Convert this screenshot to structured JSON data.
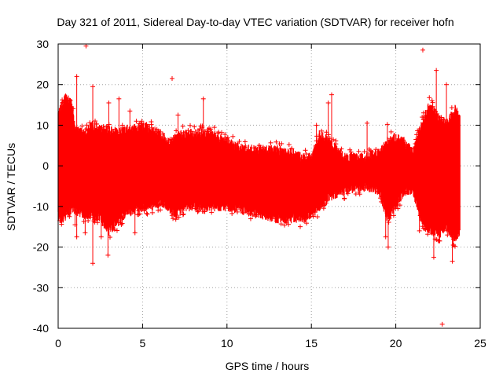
{
  "chart_data": {
    "type": "scatter",
    "title": "Day 321 of 2011, Sidereal Day-to-day VTEC variation (SDTVAR) for receiver hofn",
    "xlabel": "GPS time / hours",
    "ylabel": "SDTVAR / TECUs",
    "xlim": [
      0,
      25
    ],
    "ylim": [
      -40,
      30
    ],
    "xticks": [
      0,
      5,
      10,
      15,
      20,
      25
    ],
    "yticks": [
      -40,
      -30,
      -20,
      -10,
      0,
      10,
      20,
      30
    ],
    "grid": true,
    "marker": "+",
    "series_color": "#ff0000",
    "envelope": {
      "description": "dense band of points, approximate upper/lower bounds (x in hours, y in TECU)",
      "x": [
        0.0,
        0.2,
        0.5,
        0.8,
        1.0,
        1.5,
        2.0,
        2.5,
        3.0,
        3.5,
        4.0,
        4.5,
        5.0,
        5.5,
        6.0,
        6.5,
        7.0,
        7.5,
        8.0,
        9.0,
        10.0,
        11.0,
        12.0,
        13.0,
        14.0,
        14.5,
        15.0,
        15.5,
        16.0,
        16.5,
        17.0,
        18.0,
        19.0,
        19.5,
        20.0,
        20.5,
        21.0,
        21.5,
        22.0,
        22.5,
        23.0,
        23.5,
        23.8
      ],
      "upper": [
        12,
        15,
        17,
        15,
        9,
        8,
        10,
        9,
        9,
        8,
        9,
        9,
        10,
        9,
        8,
        6,
        7,
        8,
        8,
        8,
        6,
        4,
        4,
        4,
        3,
        2,
        2,
        8,
        6,
        4,
        2,
        2,
        3,
        6,
        7,
        6,
        3,
        10,
        15,
        12,
        10,
        14,
        12
      ],
      "lower": [
        -12,
        -14,
        -12,
        -11,
        -11,
        -12,
        -12,
        -13,
        -16,
        -14,
        -12,
        -11,
        -10,
        -10,
        -9,
        -10,
        -12,
        -10,
        -10,
        -10,
        -10,
        -11,
        -12,
        -13,
        -13,
        -13,
        -12,
        -10,
        -8,
        -7,
        -6,
        -5,
        -6,
        -13,
        -10,
        -6,
        -6,
        -13,
        -16,
        -17,
        -15,
        -18,
        -16
      ]
    },
    "outliers": [
      {
        "x": 1.65,
        "y": 29.5
      },
      {
        "x": 1.1,
        "y": 22
      },
      {
        "x": 2.05,
        "y": 19.5
      },
      {
        "x": 6.75,
        "y": 21.5
      },
      {
        "x": 7.1,
        "y": 12.5
      },
      {
        "x": 8.6,
        "y": 16.5
      },
      {
        "x": 16.2,
        "y": 17.5
      },
      {
        "x": 16.0,
        "y": 15.5
      },
      {
        "x": 18.3,
        "y": 10.5
      },
      {
        "x": 19.5,
        "y": 10.2
      },
      {
        "x": 15.3,
        "y": 10.0
      },
      {
        "x": 21.6,
        "y": 28.5
      },
      {
        "x": 22.4,
        "y": 23.5
      },
      {
        "x": 23.0,
        "y": 20
      },
      {
        "x": 3.0,
        "y": 15.5
      },
      {
        "x": 3.6,
        "y": 16.5
      },
      {
        "x": 4.25,
        "y": 13.5
      },
      {
        "x": 4.55,
        "y": -16.5
      },
      {
        "x": 1.6,
        "y": -16.5
      },
      {
        "x": 2.05,
        "y": -24
      },
      {
        "x": 2.55,
        "y": -17.5
      },
      {
        "x": 2.95,
        "y": -22
      },
      {
        "x": 1.0,
        "y": -14.5
      },
      {
        "x": 1.1,
        "y": -17.5
      },
      {
        "x": 19.55,
        "y": -20
      },
      {
        "x": 19.4,
        "y": -17.5
      },
      {
        "x": 21.4,
        "y": -16
      },
      {
        "x": 22.25,
        "y": -22.5
      },
      {
        "x": 22.75,
        "y": -39
      },
      {
        "x": 23.35,
        "y": -23.5
      },
      {
        "x": 22.6,
        "y": -18.5
      },
      {
        "x": 23.4,
        "y": -19.5
      },
      {
        "x": 0.1,
        "y": -13.5
      }
    ]
  }
}
